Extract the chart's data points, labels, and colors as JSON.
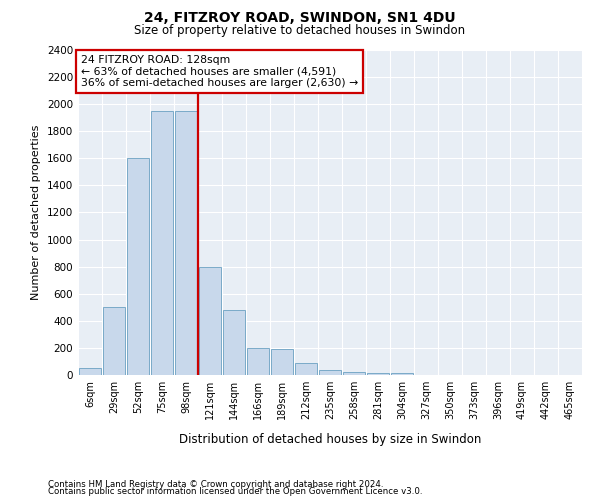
{
  "title1": "24, FITZROY ROAD, SWINDON, SN1 4DU",
  "title2": "Size of property relative to detached houses in Swindon",
  "xlabel": "Distribution of detached houses by size in Swindon",
  "ylabel": "Number of detached properties",
  "footer1": "Contains HM Land Registry data © Crown copyright and database right 2024.",
  "footer2": "Contains public sector information licensed under the Open Government Licence v3.0.",
  "annotation_line1": "24 FITZROY ROAD: 128sqm",
  "annotation_line2": "← 63% of detached houses are smaller (4,591)",
  "annotation_line3": "36% of semi-detached houses are larger (2,630) →",
  "bar_labels": [
    "6sqm",
    "29sqm",
    "52sqm",
    "75sqm",
    "98sqm",
    "121sqm",
    "144sqm",
    "166sqm",
    "189sqm",
    "212sqm",
    "235sqm",
    "258sqm",
    "281sqm",
    "304sqm",
    "327sqm",
    "350sqm",
    "373sqm",
    "396sqm",
    "419sqm",
    "442sqm",
    "465sqm"
  ],
  "bar_values": [
    50,
    500,
    1600,
    1950,
    1950,
    800,
    480,
    200,
    190,
    90,
    35,
    25,
    15,
    15,
    0,
    0,
    0,
    0,
    0,
    0,
    0
  ],
  "bar_color": "#c8d8eb",
  "bar_edge_color": "#7aaac8",
  "vline_color": "#cc0000",
  "vline_x_index": 5,
  "ylim_max": 2400,
  "annotation_box_color": "#cc0000",
  "plot_bg_color": "#e8eef5",
  "grid_color": "#ffffff",
  "fig_width": 6.0,
  "fig_height": 5.0,
  "fig_dpi": 100
}
